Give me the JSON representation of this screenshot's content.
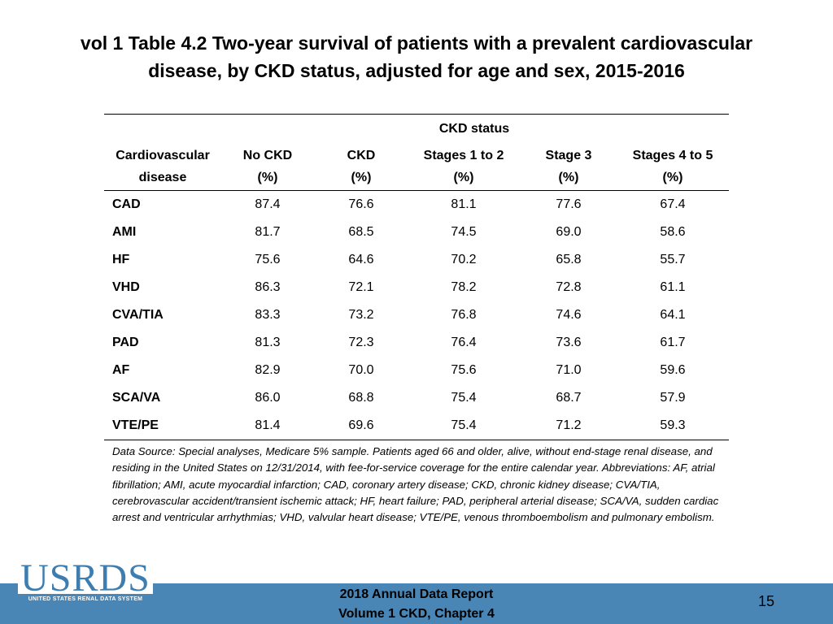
{
  "title": {
    "line1": "vol 1 Table 4.2 Two-year survival of patients with a prevalent cardiovascular",
    "line2": "disease, by CKD status, adjusted for age and sex, 2015-2016"
  },
  "table": {
    "group_header": "CKD status",
    "columns": [
      {
        "line1": "Cardiovascular",
        "line2": "disease"
      },
      {
        "line1": "No CKD",
        "line2": "(%)"
      },
      {
        "line1": "CKD",
        "line2": "(%)"
      },
      {
        "line1": "Stages 1 to 2",
        "line2": "(%)"
      },
      {
        "line1": "Stage 3",
        "line2": "(%)"
      },
      {
        "line1": "Stages 4 to 5",
        "line2": "(%)"
      }
    ],
    "rows": [
      [
        "CAD",
        "87.4",
        "76.6",
        "81.1",
        "77.6",
        "67.4"
      ],
      [
        "AMI",
        "81.7",
        "68.5",
        "74.5",
        "69.0",
        "58.6"
      ],
      [
        "HF",
        "75.6",
        "64.6",
        "70.2",
        "65.8",
        "55.7"
      ],
      [
        "VHD",
        "86.3",
        "72.1",
        "78.2",
        "72.8",
        "61.1"
      ],
      [
        "CVA/TIA",
        "83.3",
        "73.2",
        "76.8",
        "74.6",
        "64.1"
      ],
      [
        "PAD",
        "81.3",
        "72.3",
        "76.4",
        "73.6",
        "61.7"
      ],
      [
        "AF",
        "82.9",
        "70.0",
        "75.6",
        "71.0",
        "59.6"
      ],
      [
        "SCA/VA",
        "86.0",
        "68.8",
        "75.4",
        "68.7",
        "57.9"
      ],
      [
        "VTE/PE",
        "81.4",
        "69.6",
        "75.4",
        "71.2",
        "59.3"
      ]
    ]
  },
  "notes": "Data Source: Special analyses, Medicare 5% sample. Patients aged 66 and older, alive, without end-stage renal disease, and residing in the United States on 12/31/2014, with fee-for-service coverage for the entire calendar year. Abbreviations: AF, atrial fibrillation; AMI, acute myocardial infarction; CAD, coronary artery disease; CKD, chronic kidney disease; CVA/TIA, cerebrovascular accident/transient ischemic attack; HF, heart failure; PAD, peripheral arterial disease; SCA/VA, sudden cardiac arrest and ventricular arrhythmias; VHD, valvular heart disease; VTE/PE, venous thromboembolism and pulmonary embolism.",
  "footer": {
    "logo_text": "USRDS",
    "logo_subtext": "UNITED STATES RENAL DATA SYSTEM",
    "report_line1": "2018 Annual Data Report",
    "report_line2": "Volume 1 CKD, Chapter 4",
    "page_number": "15",
    "bar_color": "#4a86b5",
    "logo_color": "#3d7db0"
  }
}
